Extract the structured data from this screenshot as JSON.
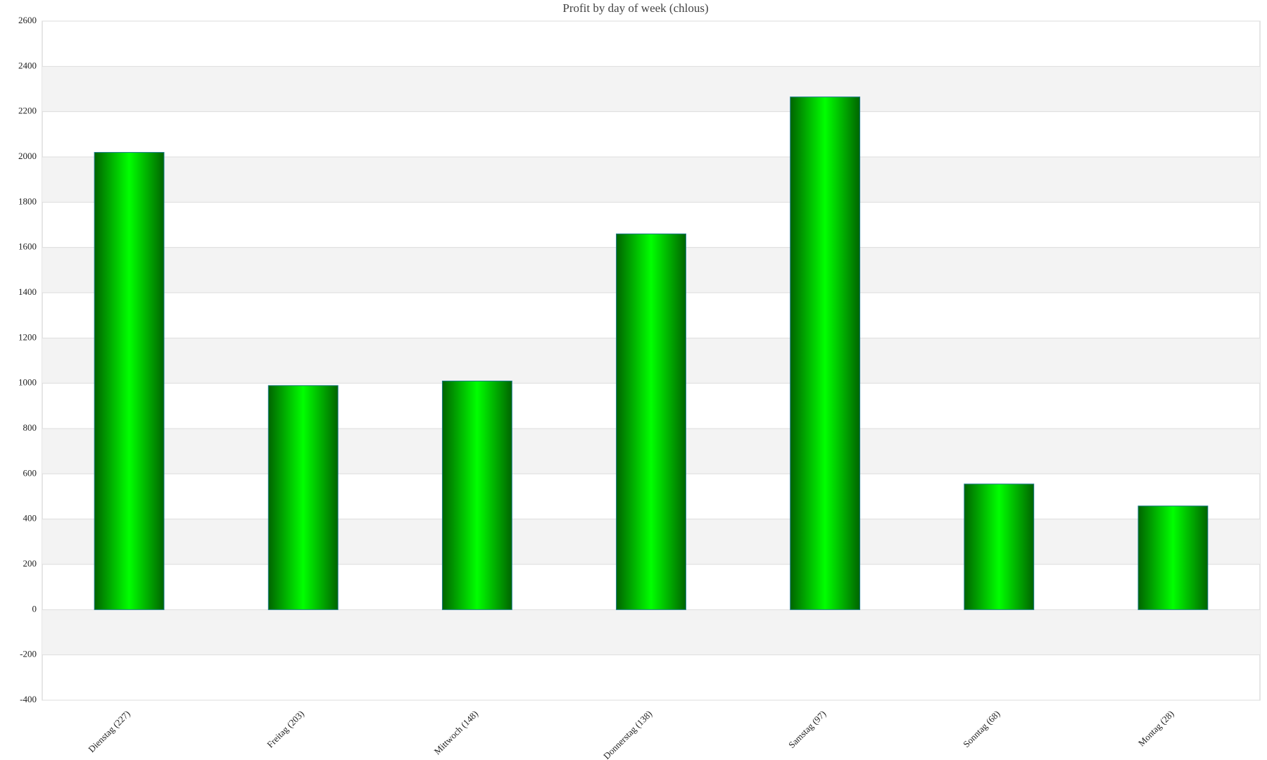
{
  "chart_data": {
    "type": "bar",
    "title": "Profit by day of week  (chlous)",
    "categories": [
      "Dienstag (227)",
      "Freitag (203)",
      "Mittwoch (148)",
      "Donnerstag (138)",
      "Samstag (97)",
      "Sonntag (68)",
      "Montag (28)"
    ],
    "values": [
      2020,
      990,
      1010,
      1660,
      2265,
      555,
      458
    ],
    "color": "#00ff00",
    "ylim": [
      -400,
      2600
    ],
    "yticks": [
      -400,
      -200,
      0,
      200,
      400,
      600,
      800,
      1000,
      1200,
      1400,
      1600,
      1800,
      2000,
      2200,
      2400,
      2600
    ],
    "grid": true
  }
}
